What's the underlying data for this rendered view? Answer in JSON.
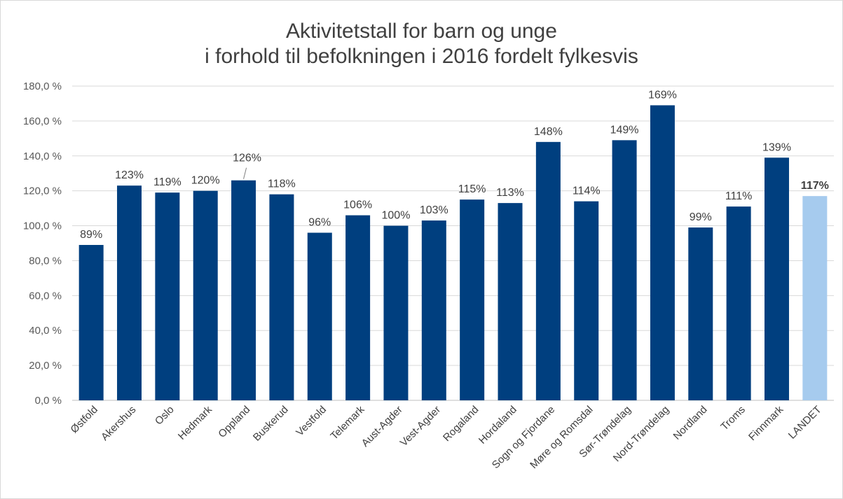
{
  "chart_data": {
    "type": "bar",
    "title_line1": "Aktivitetstall for barn og unge",
    "title_line2": "i forhold til befolkningen i 2016 fordelt fylkesvis",
    "xlabel": "",
    "ylabel": "",
    "ylim": [
      0,
      180
    ],
    "ytick_step": 20,
    "ytick_labels": [
      "0,0 %",
      "20,0 %",
      "40,0 %",
      "60,0 %",
      "80,0 %",
      "100,0 %",
      "120,0 %",
      "140,0 %",
      "160,0 %",
      "180,0 %"
    ],
    "grid": true,
    "legend": "none",
    "categories": [
      "Østfold",
      "Akershus",
      "Oslo",
      "Hedmark",
      "Oppland",
      "Buskerud",
      "Vestfold",
      "Telemark",
      "Aust-Agder",
      "Vest-Agder",
      "Rogaland",
      "Hordaland",
      "Sogn og Fjordane",
      "Møre og Romsdal",
      "Sør-Trøndelag",
      "Nord-Trøndelag",
      "Nordland",
      "Troms",
      "Finnmark",
      "LANDET"
    ],
    "values": [
      89,
      123,
      119,
      120,
      126,
      118,
      96,
      106,
      100,
      103,
      115,
      113,
      148,
      114,
      149,
      169,
      99,
      111,
      139,
      117
    ],
    "data_labels": [
      "89%",
      "123%",
      "119%",
      "120%",
      "126%",
      "118%",
      "96%",
      "106%",
      "100%",
      "103%",
      "115%",
      "113%",
      "148%",
      "114%",
      "149%",
      "169%",
      "99%",
      "111%",
      "139%",
      "117%"
    ],
    "highlight_category": "LANDET",
    "colors": {
      "bar": "#003f7f",
      "highlight": "#a6cbee",
      "grid": "#d9d9d9",
      "text": "#404040"
    }
  }
}
